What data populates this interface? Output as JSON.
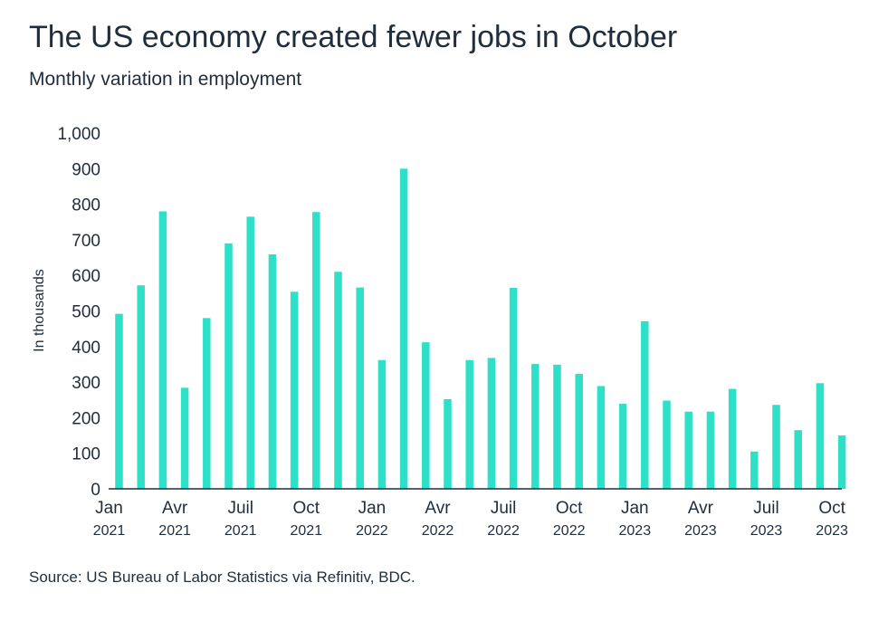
{
  "title": "The US economy created fewer jobs in October",
  "subtitle": "Monthly variation in employment",
  "source": "Source: US Bureau of Labor Statistics via Refinitiv, BDC.",
  "chart_data": {
    "type": "bar",
    "ylabel": "In thousands",
    "ylim": [
      0,
      1000
    ],
    "yticks": [
      "0",
      "100",
      "200",
      "300",
      "400",
      "500",
      "600",
      "700",
      "800",
      "900",
      "1,000"
    ],
    "bar_color": "#2fe0c8",
    "categories": [
      "2021-01",
      "2021-02",
      "2021-03",
      "2021-04",
      "2021-05",
      "2021-06",
      "2021-07",
      "2021-08",
      "2021-09",
      "2021-10",
      "2021-11",
      "2021-12",
      "2022-01",
      "2022-02",
      "2022-03",
      "2022-04",
      "2022-05",
      "2022-06",
      "2022-07",
      "2022-08",
      "2022-09",
      "2022-10",
      "2022-11",
      "2022-12",
      "2023-01",
      "2023-02",
      "2023-03",
      "2023-04",
      "2023-05",
      "2023-06",
      "2023-07",
      "2023-08",
      "2023-09",
      "2023-10"
    ],
    "values": [
      492,
      572,
      780,
      284,
      480,
      690,
      765,
      659,
      554,
      778,
      610,
      566,
      362,
      900,
      412,
      252,
      362,
      368,
      565,
      351,
      349,
      323,
      289,
      239,
      471,
      248,
      217,
      217,
      281,
      105,
      236,
      165,
      297,
      150
    ],
    "xtick_labels": [
      {
        "index": 0,
        "month": "Jan",
        "year": "2021"
      },
      {
        "index": 3,
        "month": "Avr",
        "year": "2021"
      },
      {
        "index": 6,
        "month": "Juil",
        "year": "2021"
      },
      {
        "index": 9,
        "month": "Oct",
        "year": "2021"
      },
      {
        "index": 12,
        "month": "Jan",
        "year": "2022"
      },
      {
        "index": 15,
        "month": "Avr",
        "year": "2022"
      },
      {
        "index": 18,
        "month": "Juil",
        "year": "2022"
      },
      {
        "index": 21,
        "month": "Oct",
        "year": "2022"
      },
      {
        "index": 24,
        "month": "Jan",
        "year": "2023"
      },
      {
        "index": 27,
        "month": "Avr",
        "year": "2023"
      },
      {
        "index": 30,
        "month": "Juil",
        "year": "2023"
      },
      {
        "index": 33,
        "month": "Oct",
        "year": "2023"
      }
    ]
  }
}
